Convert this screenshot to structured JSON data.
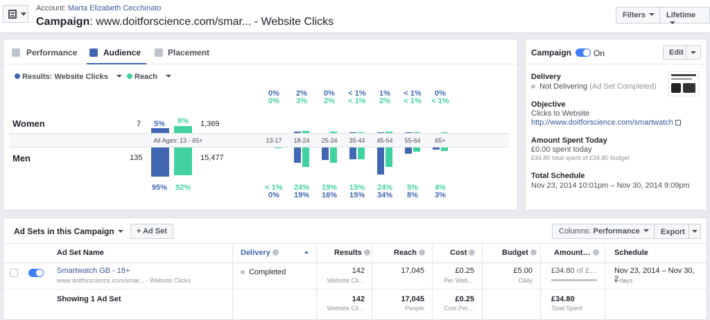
{
  "header": {
    "account_label": "Account:",
    "account_name": "Marta Elizabeth Cecchinato",
    "title_prefix": "Campaign",
    "title_rest": ": www.doitforscience.com/smar... - Website Clicks",
    "filters_label": "Filters",
    "lifetime_label": "Lifetime"
  },
  "tabs": [
    {
      "label": "Performance",
      "icon": "chart-icon",
      "active": false
    },
    {
      "label": "Audience",
      "icon": "people-icon",
      "active": true
    },
    {
      "label": "Placement",
      "icon": "placement-icon",
      "active": false
    }
  ],
  "legend": {
    "results_label": "Results: Website Clicks",
    "reach_label": "Reach"
  },
  "colors": {
    "results": "#4267b2",
    "reach": "#42d2a0",
    "accent": "#4080ff"
  },
  "audience": {
    "women": {
      "label": "Women",
      "results": "7",
      "reach": "1,369",
      "results_pct": "5%",
      "reach_pct": "8%"
    },
    "men": {
      "label": "Men",
      "results": "135",
      "reach": "15,477",
      "results_pct": "95%",
      "reach_pct": "92%"
    },
    "all_ages_label": "All Ages: 13 - 65+",
    "age_groups": [
      {
        "label": "13-17",
        "women_results": "0%",
        "women_reach": "0%",
        "men_results": "0%",
        "men_reach": "< 1%"
      },
      {
        "label": "18-24",
        "women_results": "2%",
        "women_reach": "3%",
        "men_results": "19%",
        "men_reach": "24%"
      },
      {
        "label": "25-34",
        "women_results": "0%",
        "women_reach": "2%",
        "men_results": "16%",
        "men_reach": "19%"
      },
      {
        "label": "35-44",
        "women_results": "< 1%",
        "women_reach": "< 1%",
        "men_results": "15%",
        "men_reach": "15%"
      },
      {
        "label": "45-54",
        "women_results": "1%",
        "women_reach": "2%",
        "men_results": "34%",
        "men_reach": "24%"
      },
      {
        "label": "55-64",
        "women_results": "< 1%",
        "women_reach": "< 1%",
        "men_results": "8%",
        "men_reach": "5%"
      },
      {
        "label": "65+",
        "women_results": "0%",
        "women_reach": "< 1%",
        "men_results": "3%",
        "men_reach": "4%"
      }
    ]
  },
  "campaign_panel": {
    "title": "Campaign",
    "status": "On",
    "edit_label": "Edit",
    "delivery_heading": "Delivery",
    "delivery_value": "Not Delivering",
    "delivery_note": "(Ad Set Completed)",
    "objective_heading": "Objective",
    "objective_value": "Clicks to Website",
    "objective_url": "http://www.doitforscience.com/smartwatch",
    "spent_heading": "Amount Spent Today",
    "spent_value": "£0.00 spent today",
    "spent_total": "£34.80 total spent of £34.80 budget",
    "schedule_heading": "Total Schedule",
    "schedule_value": "Nov 23, 2014 10:01pm – Nov 30, 2014 9:09pm"
  },
  "adsets": {
    "title": "Ad Sets in this Campaign",
    "add_label": "Ad Set",
    "columns_label": "Columns:",
    "columns_value": "Performance",
    "export_label": "Export",
    "headers": [
      "Ad Set Name",
      "Delivery",
      "Results",
      "Reach",
      "Cost",
      "Budget",
      "Amount…",
      "Schedule"
    ],
    "row": {
      "name": "Smartwatch GB - 18+",
      "name_sub": "www.doitforscience.com/smar... - Website Clicks",
      "delivery": "Completed",
      "results": "142",
      "results_sub": "Website Cli…",
      "reach": "17,045",
      "cost": "£0.25",
      "cost_sub": "Per Web…",
      "budget": "£5.00",
      "budget_sub": "Daily",
      "amount": "£34.80",
      "amount_of": "of £…",
      "schedule": "Nov 23, 2014 – Nov 30, 2…",
      "schedule_sub": "6 days"
    },
    "summary": {
      "label": "Showing 1 Ad Set",
      "results": "142",
      "results_sub": "Website Cli…",
      "reach": "17,045",
      "reach_sub": "People",
      "cost": "£0.25",
      "cost_sub": "Cost Per…",
      "amount": "£34.80",
      "amount_sub": "Total Spent"
    }
  }
}
